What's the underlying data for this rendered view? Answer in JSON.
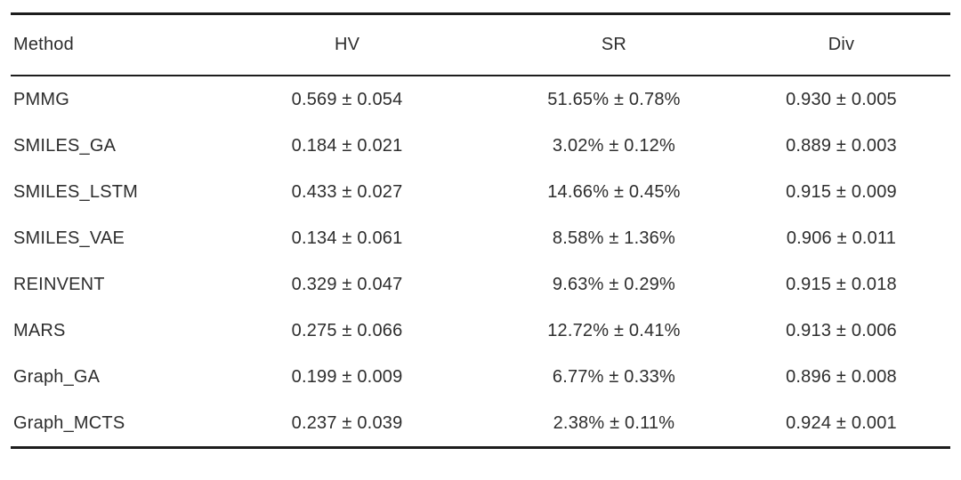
{
  "table": {
    "columns": [
      "Method",
      "HV",
      "SR",
      "Div"
    ],
    "rows": [
      [
        "PMMG",
        "0.569 ± 0.054",
        "51.65% ± 0.78%",
        "0.930 ± 0.005"
      ],
      [
        "SMILES_GA",
        "0.184 ± 0.021",
        "3.02% ± 0.12%",
        "0.889 ± 0.003"
      ],
      [
        "SMILES_LSTM",
        "0.433 ± 0.027",
        "14.66% ± 0.45%",
        "0.915 ± 0.009"
      ],
      [
        "SMILES_VAE",
        "0.134 ± 0.061",
        "8.58% ± 1.36%",
        "0.906 ± 0.011"
      ],
      [
        "REINVENT",
        "0.329 ± 0.047",
        "9.63% ± 0.29%",
        "0.915 ± 0.018"
      ],
      [
        "MARS",
        "0.275 ± 0.066",
        "12.72% ± 0.41%",
        "0.913 ± 0.006"
      ],
      [
        "Graph_GA",
        "0.199 ± 0.009",
        "6.77% ± 0.33%",
        "0.896 ± 0.008"
      ],
      [
        "Graph_MCTS",
        "0.237 ± 0.039",
        "2.38% ± 0.11%",
        "0.924 ± 0.001"
      ]
    ],
    "colors": {
      "text": "#2d2d2d",
      "rule": "#1d1d1d",
      "background": "#ffffff"
    }
  }
}
